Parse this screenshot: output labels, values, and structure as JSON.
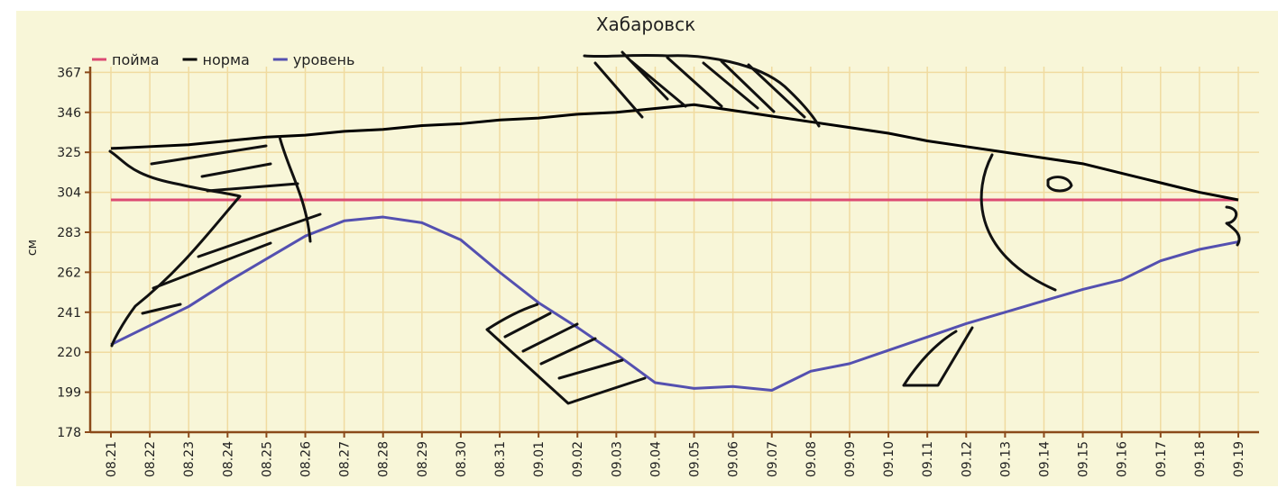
{
  "chart_data": {
    "type": "line",
    "title": "Хабаровск",
    "y_label": "см",
    "categories": [
      "08.21",
      "08.22",
      "08.23",
      "08.24",
      "08.25",
      "08.26",
      "08.27",
      "08.28",
      "08.29",
      "08.30",
      "08.31",
      "09.01",
      "09.02",
      "09.03",
      "09.04",
      "09.05",
      "09.06",
      "09.07",
      "09.08",
      "09.09",
      "09.10",
      "09.11",
      "09.12",
      "09.13",
      "09.14",
      "09.15",
      "09.16",
      "09.17",
      "09.18",
      "09.19"
    ],
    "series": [
      {
        "name": "пойма",
        "color": "#dc4a73",
        "values": [
          300,
          300,
          300,
          300,
          300,
          300,
          300,
          300,
          300,
          300,
          300,
          300,
          300,
          300,
          300,
          300,
          300,
          300,
          300,
          300,
          300,
          300,
          300,
          300,
          300,
          300,
          300,
          300,
          300,
          300
        ]
      },
      {
        "name": "норма",
        "color": "#000000",
        "values": [
          327,
          328,
          329,
          331,
          333,
          334,
          336,
          337,
          339,
          340,
          342,
          343,
          345,
          346,
          348,
          350,
          347,
          344,
          341,
          338,
          335,
          331,
          328,
          325,
          322,
          319,
          314,
          309,
          304,
          300
        ]
      },
      {
        "name": "уровень",
        "color": "#5450b0",
        "values": [
          224,
          234,
          244,
          257,
          269,
          281,
          289,
          291,
          288,
          279,
          262,
          246,
          233,
          219,
          204,
          201,
          202,
          200,
          210,
          214,
          221,
          228,
          235,
          241,
          247,
          253,
          258,
          268,
          274,
          278
        ]
      }
    ],
    "ylim": [
      178,
      370
    ],
    "yticks": [
      178,
      199,
      220,
      241,
      262,
      283,
      304,
      325,
      346,
      367
    ],
    "grid": true,
    "legend": "top-left"
  }
}
